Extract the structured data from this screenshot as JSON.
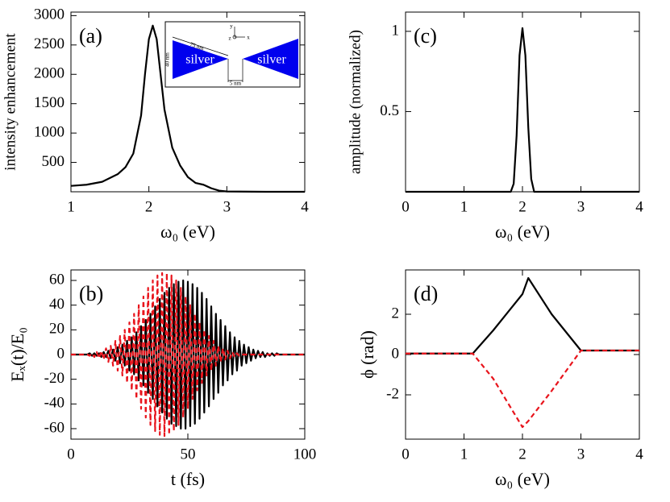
{
  "chart_data": [
    {
      "type": "line",
      "annotation": "(a)",
      "xlabel": "ω₀ (eV)",
      "ylabel": "intensity enhancement",
      "xlim": [
        1,
        4
      ],
      "ylim": [
        0,
        3060
      ],
      "xticks": [
        1,
        2,
        3,
        4
      ],
      "yticks": [
        500,
        1000,
        1500,
        2000,
        2500,
        3000
      ],
      "x": [
        1,
        1.2,
        1.4,
        1.6,
        1.7,
        1.8,
        1.9,
        1.95,
        2.0,
        2.05,
        2.1,
        2.15,
        2.2,
        2.3,
        2.4,
        2.5,
        2.6,
        2.7,
        2.8,
        2.9,
        3.0,
        3.5,
        4
      ],
      "series": [
        {
          "color": "#000000",
          "dashed": false,
          "values": [
            100,
            120,
            170,
            300,
            420,
            650,
            1300,
            2000,
            2600,
            2830,
            2600,
            2000,
            1400,
            750,
            450,
            250,
            150,
            120,
            60,
            20,
            5,
            0,
            0
          ]
        }
      ],
      "inset_labels": [
        "silver",
        "silver",
        "75 nm",
        "40 nm",
        "5 nm",
        "y",
        "z",
        "x"
      ]
    },
    {
      "type": "line",
      "annotation": "(b)",
      "xlabel": "t (fs)",
      "ylabel": "Eₓ(t)/E₀",
      "xlim": [
        0,
        100
      ],
      "ylim": [
        -68.5,
        68.5
      ],
      "xticks": [
        0,
        50,
        100
      ],
      "yticks": [
        -60,
        -40,
        -20,
        0,
        20,
        40,
        60
      ],
      "x": [
        0,
        1,
        2,
        3,
        4,
        5,
        6,
        7,
        8,
        9,
        10,
        11,
        12,
        13,
        14,
        15,
        16,
        17,
        18,
        19,
        20,
        21,
        22,
        23,
        24,
        25,
        26,
        27,
        28,
        29,
        30,
        31,
        32,
        33,
        34,
        35,
        36,
        37,
        38,
        39,
        40,
        41,
        42,
        43,
        44,
        45,
        46,
        47,
        48,
        49,
        50,
        51,
        52,
        53,
        54,
        55,
        56,
        57,
        58,
        59,
        60,
        61,
        62,
        63,
        64,
        65,
        66,
        67,
        68,
        69,
        70,
        71,
        72,
        73,
        74,
        75,
        76,
        77,
        78,
        79,
        80,
        81,
        82,
        83,
        84,
        85,
        86,
        87,
        88,
        89,
        90,
        91,
        92,
        93,
        94,
        95,
        96,
        97,
        98,
        99,
        100
      ],
      "series": [
        {
          "color": "#000000",
          "dashed": false,
          "values": [
            0,
            0,
            0,
            0,
            0,
            0,
            0,
            0,
            1,
            -1,
            1,
            -1,
            1,
            -2,
            2,
            -2,
            3,
            -3,
            4,
            -5,
            6,
            -7,
            8,
            -9,
            11,
            -13,
            14,
            -16,
            18,
            -21,
            23,
            -25,
            28,
            -31,
            33,
            -36,
            39,
            -42,
            45,
            -47,
            50,
            -52,
            54,
            -56,
            57,
            -58,
            59,
            -60,
            60,
            -60,
            59,
            -58,
            57,
            -56,
            54,
            -52,
            50,
            -47,
            45,
            -42,
            39,
            -36,
            33,
            -31,
            28,
            -25,
            23,
            -21,
            18,
            -16,
            14,
            -13,
            11,
            -9,
            8,
            -7,
            6,
            -5,
            4,
            -3,
            3,
            -2,
            2,
            -2,
            1,
            -1,
            1,
            -1,
            1,
            0,
            0,
            0,
            0,
            0,
            0,
            0,
            0,
            0,
            0,
            0,
            0
          ]
        },
        {
          "color": "#e8141c",
          "dashed": true,
          "values": [
            0,
            0,
            0,
            0,
            0,
            0,
            0,
            0,
            -1,
            1,
            -2,
            2,
            -3,
            3,
            -4,
            5,
            -6,
            7,
            -9,
            11,
            -13,
            15,
            -17,
            20,
            -23,
            26,
            -29,
            33,
            -36,
            40,
            -44,
            47,
            -51,
            54,
            -57,
            60,
            -62,
            64,
            -65,
            66,
            -66,
            66,
            -65,
            64,
            -62,
            60,
            -57,
            54,
            -51,
            47,
            -44,
            40,
            -36,
            33,
            -29,
            26,
            -23,
            20,
            -17,
            15,
            -13,
            11,
            -9,
            7,
            -6,
            5,
            -4,
            3,
            -3,
            2,
            -2,
            1,
            -1,
            0,
            0,
            0,
            0,
            0,
            0,
            0,
            0,
            0,
            0,
            0,
            0,
            0,
            0,
            0,
            0,
            0,
            0,
            0,
            0,
            0,
            0,
            0,
            0,
            0,
            0,
            0,
            0
          ]
        }
      ]
    },
    {
      "type": "line",
      "annotation": "(c)",
      "xlabel": "ω₀ (eV)",
      "ylabel": "amplitude (normalized)",
      "xlim": [
        0,
        4
      ],
      "ylim": [
        0,
        1.12
      ],
      "xticks": [
        0,
        1,
        2,
        3,
        4
      ],
      "yticks": [
        0.5,
        1
      ],
      "x": [
        0,
        1.8,
        1.85,
        1.9,
        1.95,
        2.0,
        2.05,
        2.1,
        2.15,
        2.2,
        4
      ],
      "series": [
        {
          "color": "#000000",
          "dashed": false,
          "values": [
            0,
            0,
            0.05,
            0.35,
            0.85,
            1.02,
            0.85,
            0.4,
            0.08,
            0,
            0
          ]
        }
      ]
    },
    {
      "type": "line",
      "annotation": "(d)",
      "xlabel": "ω₀ (eV)",
      "ylabel": "ϕ (rad)",
      "xlim": [
        0,
        4
      ],
      "ylim": [
        -4.2,
        4.2
      ],
      "xticks": [
        0,
        1,
        2,
        3,
        4
      ],
      "yticks": [
        -2,
        0,
        2
      ],
      "x": [
        0,
        1.15,
        1.5,
        2.0,
        2.1,
        2.5,
        3.0,
        4
      ],
      "series": [
        {
          "color": "#000000",
          "dashed": false,
          "values": [
            0.05,
            0.05,
            1.2,
            3.0,
            3.8,
            2.0,
            0.2,
            0.2
          ]
        },
        {
          "color": "#e8141c",
          "dashed": true,
          "values": [
            0.05,
            0.05,
            -1.2,
            -3.6,
            -3.3,
            -1.8,
            0.2,
            0.2
          ]
        }
      ]
    }
  ]
}
